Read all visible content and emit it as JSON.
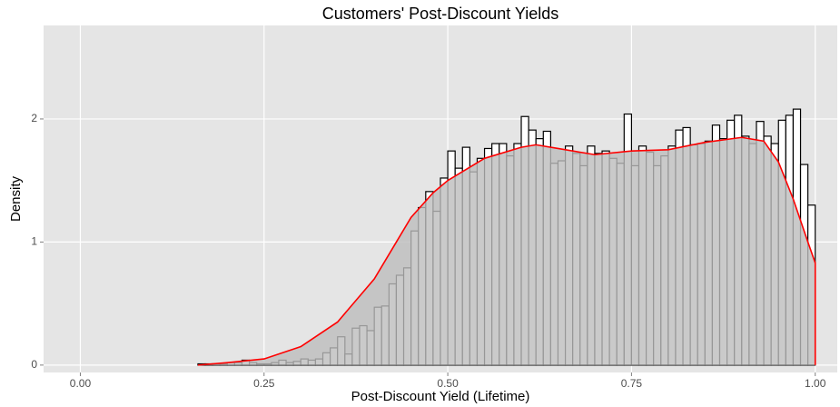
{
  "chart_data": {
    "type": "histogram",
    "title": "Customers' Post-Discount Yields",
    "xlabel": "Post-Discount Yield (Lifetime)",
    "ylabel": "Density",
    "bins": [
      0,
      0.01,
      0.02,
      0.03,
      0.04,
      0.05,
      0.06,
      0.07,
      0.08,
      0.09,
      0.1,
      0.11,
      0.12,
      0.13,
      0.14,
      0.15,
      0.16,
      0.17,
      0.18,
      0.19,
      0.2,
      0.21,
      0.22,
      0.23,
      0.24,
      0.25,
      0.26,
      0.27,
      0.28,
      0.29,
      0.3,
      0.31,
      0.32,
      0.33,
      0.34,
      0.35,
      0.36,
      0.37,
      0.38,
      0.39,
      0.4,
      0.41,
      0.42,
      0.43,
      0.44,
      0.45,
      0.46,
      0.47,
      0.48,
      0.49,
      0.5,
      0.51,
      0.52,
      0.53,
      0.54,
      0.55,
      0.56,
      0.57,
      0.58,
      0.59,
      0.6,
      0.61,
      0.62,
      0.63,
      0.64,
      0.65,
      0.66,
      0.67,
      0.68,
      0.69,
      0.7,
      0.71,
      0.72,
      0.73,
      0.74,
      0.75,
      0.76,
      0.77,
      0.78,
      0.79,
      0.8,
      0.81,
      0.82,
      0.83,
      0.84,
      0.85,
      0.86,
      0.87,
      0.88,
      0.89,
      0.9,
      0.91,
      0.92,
      0.93,
      0.94,
      0.95,
      0.96,
      0.97,
      0.98,
      0.99,
      1
    ],
    "values": [
      0,
      0,
      0,
      0,
      0,
      0,
      0,
      0,
      0,
      0,
      0,
      0,
      0,
      0,
      0,
      0,
      0.01,
      0.01,
      0.01,
      0.01,
      0.02,
      0.02,
      0.04,
      0.02,
      0.01,
      0.01,
      0.02,
      0.04,
      0.02,
      0.03,
      0.05,
      0.04,
      0.05,
      0.1,
      0.14,
      0.23,
      0.09,
      0.3,
      0.32,
      0.28,
      0.47,
      0.48,
      0.66,
      0.73,
      0.79,
      1.09,
      1.28,
      1.41,
      1.25,
      1.52,
      1.74,
      1.6,
      1.77,
      1.57,
      1.68,
      1.76,
      1.8,
      1.8,
      1.7,
      1.8,
      2.02,
      1.91,
      1.84,
      1.9,
      1.64,
      1.66,
      1.78,
      1.72,
      1.62,
      1.78,
      1.72,
      1.74,
      1.68,
      1.64,
      2.04,
      1.62,
      1.78,
      1.73,
      1.62,
      1.7,
      1.78,
      1.91,
      1.93,
      1.79,
      1.8,
      1.82,
      1.95,
      1.84,
      1.99,
      2.03,
      1.86,
      1.8,
      1.98,
      1.86,
      1.8,
      1.99,
      2.03,
      2.08,
      1.63,
      1.3
    ],
    "color": "#ffffff",
    "edge_color": "#000000",
    "density": {
      "x": [
        0.16,
        0.2,
        0.25,
        0.3,
        0.35,
        0.4,
        0.43,
        0.45,
        0.48,
        0.5,
        0.55,
        0.6,
        0.62,
        0.65,
        0.7,
        0.75,
        0.8,
        0.85,
        0.9,
        0.93,
        0.95,
        0.97,
        0.99,
        1.0,
        1.0
      ],
      "y": [
        0,
        0.02,
        0.05,
        0.15,
        0.35,
        0.7,
        1.0,
        1.2,
        1.4,
        1.5,
        1.68,
        1.77,
        1.79,
        1.76,
        1.71,
        1.74,
        1.75,
        1.81,
        1.85,
        1.82,
        1.65,
        1.35,
        1.0,
        0.83,
        0
      ],
      "color": "#ff0000",
      "fill": "#bdbdbd"
    },
    "xlim": [
      -0.05,
      1.03
    ],
    "ylim": [
      -0.06,
      2.76
    ],
    "xticks": [
      {
        "value": 0,
        "label": "0.00"
      },
      {
        "value": 0.25,
        "label": "0.25"
      },
      {
        "value": 0.5,
        "label": "0.50"
      },
      {
        "value": 0.75,
        "label": "0.75"
      },
      {
        "value": 1,
        "label": "1.00"
      }
    ],
    "yticks": [
      0,
      1,
      2
    ],
    "grid": true
  }
}
